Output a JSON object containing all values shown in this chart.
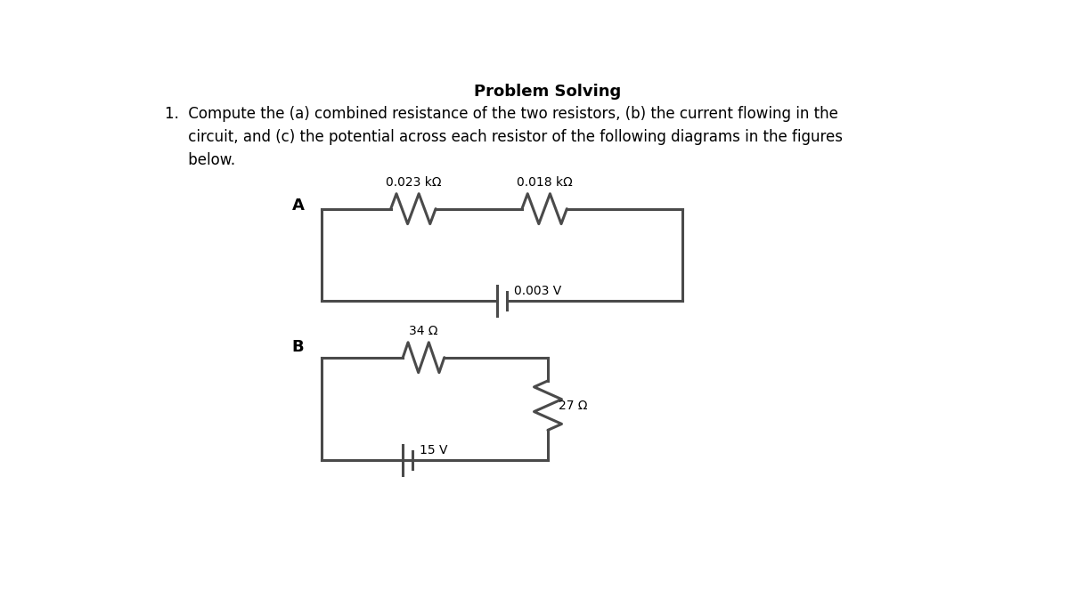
{
  "title": "Problem Solving",
  "problem_line1": "1.  Compute the (a) combined resistance of the two resistors, (b) the current flowing in the",
  "problem_line2": "     circuit, and (c) the potential across each resistor of the following diagrams in the figures",
  "problem_line3": "     below.",
  "circuit_A_label": "A",
  "circuit_B_label": "B",
  "resistor_A1_label": "0.023 kΩ",
  "resistor_A2_label": "0.018 kΩ",
  "voltage_A_label": "0.003 V",
  "resistor_B1_label": "34 Ω",
  "resistor_B2_label": "27 Ω",
  "voltage_B_label": "15 V",
  "bg_color": "#ffffff",
  "line_color": "#000000",
  "text_color": "#000000",
  "circuit_line_color": "#4a4a4a",
  "title_fontsize": 13,
  "body_fontsize": 12,
  "label_fontsize": 10
}
